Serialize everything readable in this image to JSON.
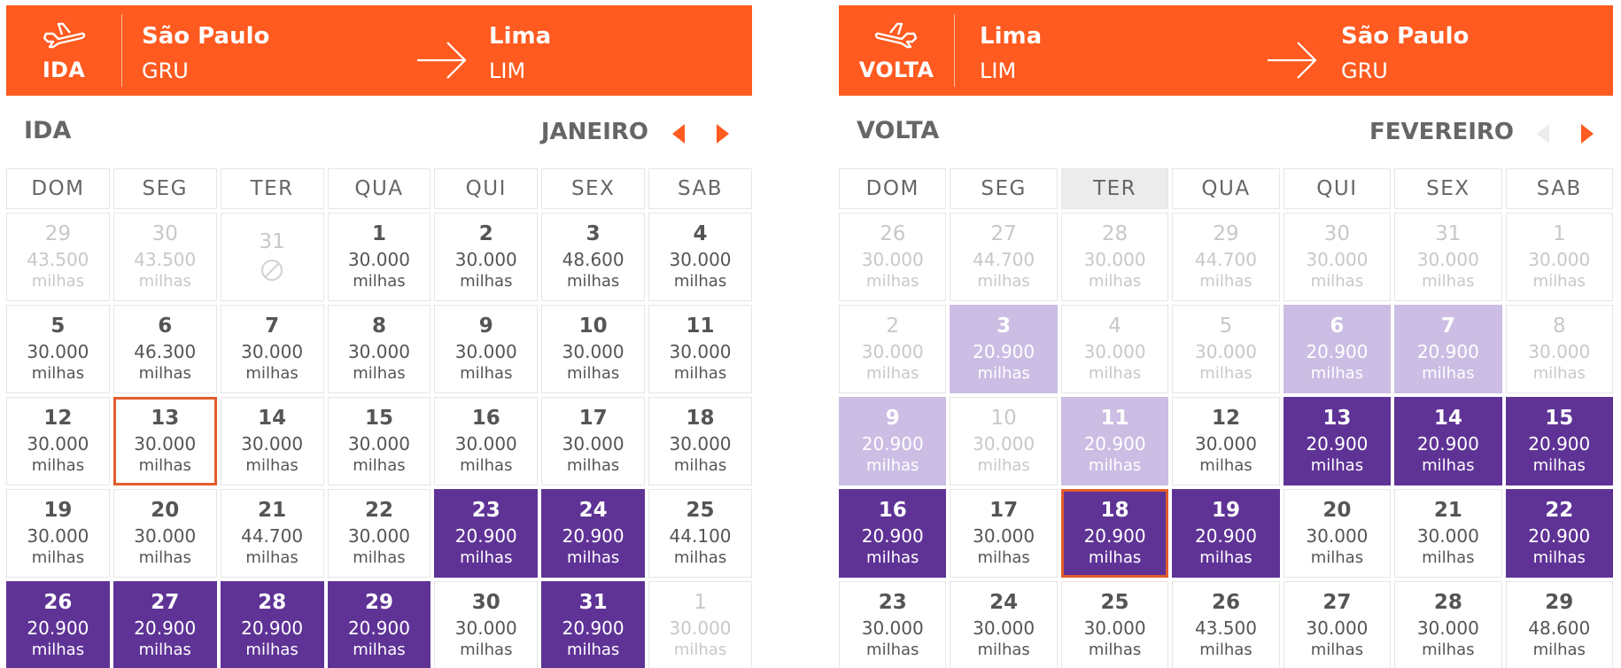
{
  "ida": {
    "header": {
      "tag": "IDA",
      "from_city": "São Paulo",
      "from_code": "GRU",
      "to_city": "Lima",
      "to_code": "LIM"
    },
    "title": "IDA",
    "month": "JANEIRO",
    "weekdays": [
      "DOM",
      "SEG",
      "TER",
      "QUA",
      "QUI",
      "SEX",
      "SAB"
    ],
    "unit": "milhas",
    "weeks": [
      [
        {
          "d": "29",
          "p": "43.500",
          "s": "muted"
        },
        {
          "d": "30",
          "p": "43.500",
          "s": "muted"
        },
        {
          "d": "31",
          "p": "",
          "s": "muted blocked"
        },
        {
          "d": "1",
          "p": "30.000"
        },
        {
          "d": "2",
          "p": "30.000"
        },
        {
          "d": "3",
          "p": "48.600"
        },
        {
          "d": "4",
          "p": "30.000"
        }
      ],
      [
        {
          "d": "5",
          "p": "30.000"
        },
        {
          "d": "6",
          "p": "46.300"
        },
        {
          "d": "7",
          "p": "30.000"
        },
        {
          "d": "8",
          "p": "30.000"
        },
        {
          "d": "9",
          "p": "30.000"
        },
        {
          "d": "10",
          "p": "30.000"
        },
        {
          "d": "11",
          "p": "30.000"
        }
      ],
      [
        {
          "d": "12",
          "p": "30.000"
        },
        {
          "d": "13",
          "p": "30.000",
          "s": "selected"
        },
        {
          "d": "14",
          "p": "30.000"
        },
        {
          "d": "15",
          "p": "30.000"
        },
        {
          "d": "16",
          "p": "30.000"
        },
        {
          "d": "17",
          "p": "30.000"
        },
        {
          "d": "18",
          "p": "30.000"
        }
      ],
      [
        {
          "d": "19",
          "p": "30.000"
        },
        {
          "d": "20",
          "p": "30.000"
        },
        {
          "d": "21",
          "p": "44.700"
        },
        {
          "d": "22",
          "p": "30.000"
        },
        {
          "d": "23",
          "p": "20.900",
          "s": "promo"
        },
        {
          "d": "24",
          "p": "20.900",
          "s": "promo"
        },
        {
          "d": "25",
          "p": "44.100"
        }
      ],
      [
        {
          "d": "26",
          "p": "20.900",
          "s": "promo"
        },
        {
          "d": "27",
          "p": "20.900",
          "s": "promo"
        },
        {
          "d": "28",
          "p": "20.900",
          "s": "promo"
        },
        {
          "d": "29",
          "p": "20.900",
          "s": "promo"
        },
        {
          "d": "30",
          "p": "30.000"
        },
        {
          "d": "31",
          "p": "20.900",
          "s": "promo"
        },
        {
          "d": "1",
          "p": "30.000",
          "s": "muted"
        }
      ]
    ]
  },
  "volta": {
    "header": {
      "tag": "VOLTA",
      "from_city": "Lima",
      "from_code": "LIM",
      "to_city": "São Paulo",
      "to_code": "GRU"
    },
    "title": "VOLTA",
    "month": "FEVEREIRO",
    "weekdays": [
      "DOM",
      "SEG",
      "TER",
      "QUA",
      "QUI",
      "SEX",
      "SAB"
    ],
    "highlight_weekday": 2,
    "unit": "milhas",
    "weeks": [
      [
        {
          "d": "26",
          "p": "30.000",
          "s": "muted"
        },
        {
          "d": "27",
          "p": "44.700",
          "s": "muted"
        },
        {
          "d": "28",
          "p": "30.000",
          "s": "muted"
        },
        {
          "d": "29",
          "p": "44.700",
          "s": "muted"
        },
        {
          "d": "30",
          "p": "30.000",
          "s": "muted"
        },
        {
          "d": "31",
          "p": "30.000",
          "s": "muted"
        },
        {
          "d": "1",
          "p": "30.000",
          "s": "muted"
        }
      ],
      [
        {
          "d": "2",
          "p": "30.000",
          "s": "muted"
        },
        {
          "d": "3",
          "p": "20.900",
          "s": "lightpromo"
        },
        {
          "d": "4",
          "p": "30.000",
          "s": "muted"
        },
        {
          "d": "5",
          "p": "30.000",
          "s": "muted"
        },
        {
          "d": "6",
          "p": "20.900",
          "s": "lightpromo"
        },
        {
          "d": "7",
          "p": "20.900",
          "s": "lightpromo"
        },
        {
          "d": "8",
          "p": "30.000",
          "s": "muted"
        }
      ],
      [
        {
          "d": "9",
          "p": "20.900",
          "s": "lightpromo"
        },
        {
          "d": "10",
          "p": "30.000",
          "s": "muted"
        },
        {
          "d": "11",
          "p": "20.900",
          "s": "lightpromo"
        },
        {
          "d": "12",
          "p": "30.000"
        },
        {
          "d": "13",
          "p": "20.900",
          "s": "promo"
        },
        {
          "d": "14",
          "p": "20.900",
          "s": "promo"
        },
        {
          "d": "15",
          "p": "20.900",
          "s": "promo"
        }
      ],
      [
        {
          "d": "16",
          "p": "20.900",
          "s": "promo"
        },
        {
          "d": "17",
          "p": "30.000"
        },
        {
          "d": "18",
          "p": "20.900",
          "s": "promo selected"
        },
        {
          "d": "19",
          "p": "20.900",
          "s": "promo"
        },
        {
          "d": "20",
          "p": "30.000"
        },
        {
          "d": "21",
          "p": "30.000"
        },
        {
          "d": "22",
          "p": "20.900",
          "s": "promo"
        }
      ],
      [
        {
          "d": "23",
          "p": "30.000"
        },
        {
          "d": "24",
          "p": "30.000"
        },
        {
          "d": "25",
          "p": "30.000"
        },
        {
          "d": "26",
          "p": "43.500"
        },
        {
          "d": "27",
          "p": "30.000"
        },
        {
          "d": "28",
          "p": "30.000"
        },
        {
          "d": "29",
          "p": "48.600"
        }
      ]
    ]
  },
  "colors": {
    "brand": "#ff5a1f",
    "promo": "#5f3396",
    "promo_light": "#cbbde3",
    "selected_border": "#e35d2c"
  },
  "icons": {
    "header_left": "plane-icon",
    "route": "arrow-right-icon",
    "blocked": "blocked-icon",
    "prev": "caret-left-icon",
    "next": "caret-right-icon"
  }
}
